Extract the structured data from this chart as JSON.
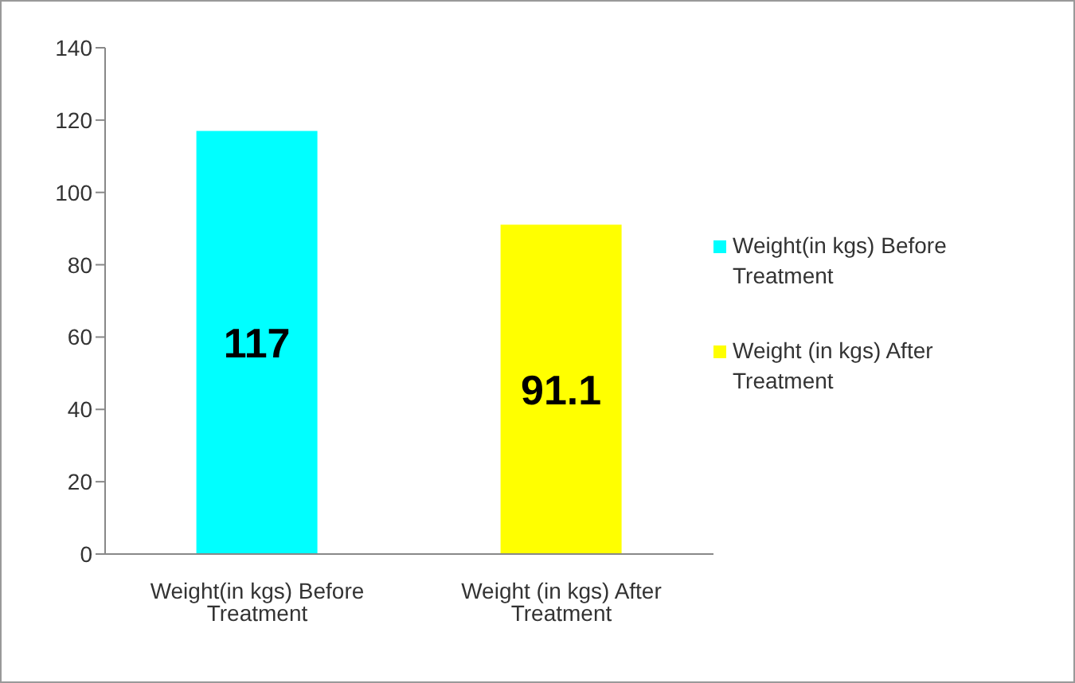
{
  "chart_data": {
    "type": "bar",
    "categories": [
      "Weight(in kgs) Before Treatment",
      "Weight (in kgs) After Treatment"
    ],
    "series": [
      {
        "name": "Weight(in kgs) Before Treatment",
        "color": "#00ffff",
        "values": [
          117,
          null
        ]
      },
      {
        "name": "Weight (in kgs) After Treatment",
        "color": "#ffff00",
        "values": [
          null,
          91.1
        ]
      }
    ],
    "ylim": [
      0,
      140
    ],
    "yticks": [
      0,
      20,
      40,
      60,
      80,
      100,
      120,
      140
    ],
    "data_labels": true,
    "legend": "right",
    "grid": false
  }
}
